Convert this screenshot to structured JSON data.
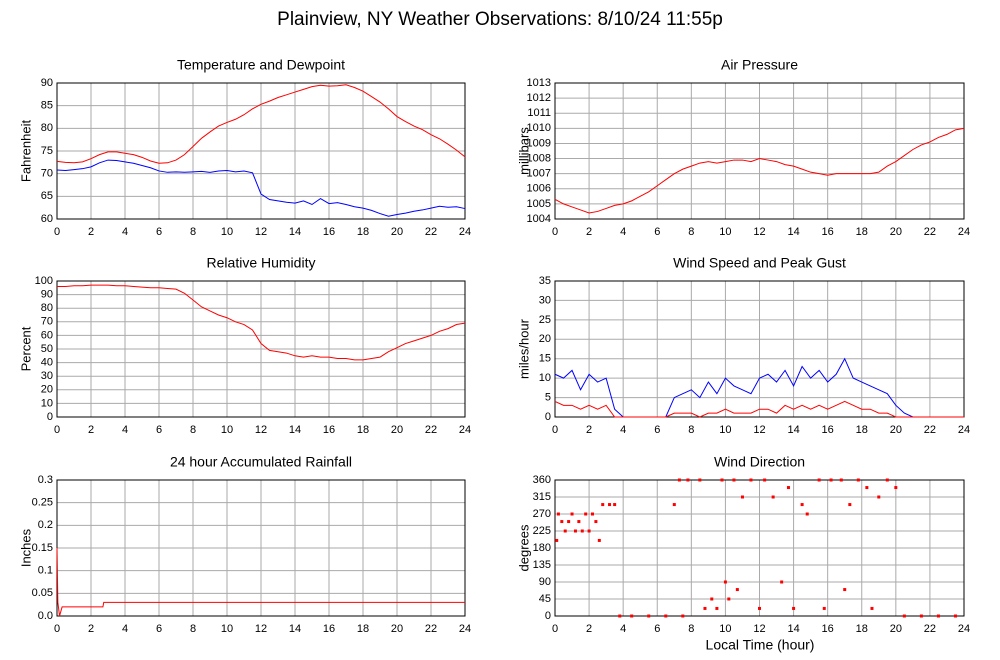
{
  "title": "Plainview, NY Weather Observations: 8/10/24 11:55p",
  "xlabel": "Local Time (hour)",
  "chart_data": [
    {
      "type": "line",
      "title": "Temperature and Dewpoint",
      "ylabel": "Fahrenheit",
      "x": [
        0,
        0.5,
        1,
        1.5,
        2,
        2.5,
        3,
        3.5,
        4,
        4.5,
        5,
        5.5,
        6,
        6.5,
        7,
        7.5,
        8,
        8.5,
        9,
        9.5,
        10,
        10.5,
        11,
        11.5,
        12,
        12.5,
        13,
        13.5,
        14,
        14.5,
        15,
        15.5,
        16,
        16.5,
        17,
        17.5,
        18,
        18.5,
        19,
        19.5,
        20,
        20.5,
        21,
        21.5,
        22,
        22.5,
        23,
        23.5,
        24
      ],
      "series": [
        {
          "color": "#ff0000",
          "values": [
            72.7,
            72.5,
            72.4,
            72.6,
            73.3,
            74.2,
            74.8,
            74.8,
            74.5,
            74.2,
            73.6,
            72.8,
            72.3,
            72.4,
            73,
            74.2,
            76,
            77.8,
            79.2,
            80.5,
            81.3,
            82,
            83,
            84.3,
            85.3,
            86,
            86.8,
            87.4,
            88,
            88.6,
            89.2,
            89.5,
            89.3,
            89.4,
            89.6,
            89,
            88.2,
            87,
            85.8,
            84.3,
            82.6,
            81.5,
            80.5,
            79.7,
            78.6,
            77.7,
            76.5,
            75.2,
            73.7
          ]
        },
        {
          "color": "#0000ff",
          "values": [
            70.8,
            70.7,
            70.9,
            71.1,
            71.5,
            72.4,
            73,
            72.9,
            72.6,
            72.3,
            71.8,
            71.3,
            70.6,
            70.3,
            70.4,
            70.3,
            70.4,
            70.5,
            70.3,
            70.6,
            70.7,
            70.4,
            70.6,
            70.2,
            65.5,
            64.3,
            64,
            63.7,
            63.5,
            64,
            63.2,
            64.5,
            63.4,
            63.6,
            63.2,
            62.7,
            62.4,
            61.9,
            61.2,
            60.6,
            61,
            61.3,
            61.7,
            62,
            62.4,
            62.8,
            62.6,
            62.7,
            62.3
          ]
        }
      ],
      "xlim": [
        0,
        24
      ],
      "xticks": [
        0,
        2,
        4,
        6,
        8,
        10,
        12,
        14,
        16,
        18,
        20,
        22,
        24
      ],
      "ylim": [
        60,
        90
      ],
      "yticks": [
        60,
        65,
        70,
        75,
        80,
        85,
        90
      ],
      "grid": true
    },
    {
      "type": "line",
      "title": "Air Pressure",
      "ylabel": "millibars",
      "x": [
        0,
        0.5,
        1,
        1.5,
        2,
        2.5,
        3,
        3.5,
        4,
        4.5,
        5,
        5.5,
        6,
        6.5,
        7,
        7.5,
        8,
        8.5,
        9,
        9.5,
        10,
        10.5,
        11,
        11.5,
        12,
        12.5,
        13,
        13.5,
        14,
        14.5,
        15,
        15.5,
        16,
        16.5,
        17,
        17.5,
        18,
        18.5,
        19,
        19.5,
        20,
        20.5,
        21,
        21.5,
        22,
        22.5,
        23,
        23.5,
        24
      ],
      "series": [
        {
          "color": "#ff0000",
          "values": [
            1005.3,
            1005,
            1004.8,
            1004.6,
            1004.4,
            1004.5,
            1004.7,
            1004.9,
            1005,
            1005.2,
            1005.5,
            1005.8,
            1006.2,
            1006.6,
            1007,
            1007.3,
            1007.5,
            1007.7,
            1007.8,
            1007.7,
            1007.8,
            1007.9,
            1007.9,
            1007.8,
            1008,
            1007.9,
            1007.8,
            1007.6,
            1007.5,
            1007.3,
            1007.1,
            1007,
            1006.9,
            1007,
            1007,
            1007,
            1007,
            1007,
            1007.1,
            1007.5,
            1007.8,
            1008.2,
            1008.6,
            1008.9,
            1009.1,
            1009.4,
            1009.6,
            1009.9,
            1010
          ]
        }
      ],
      "xlim": [
        0,
        24
      ],
      "xticks": [
        0,
        2,
        4,
        6,
        8,
        10,
        12,
        14,
        16,
        18,
        20,
        22,
        24
      ],
      "ylim": [
        1004,
        1013
      ],
      "yticks": [
        1004,
        1005,
        1006,
        1007,
        1008,
        1009,
        1010,
        1011,
        1012,
        1013
      ],
      "grid": true
    },
    {
      "type": "line",
      "title": "Relative Humidity",
      "ylabel": "Percent",
      "x": [
        0,
        0.5,
        1,
        1.5,
        2,
        2.5,
        3,
        3.5,
        4,
        4.5,
        5,
        5.5,
        6,
        6.5,
        7,
        7.5,
        8,
        8.5,
        9,
        9.5,
        10,
        10.5,
        11,
        11.5,
        12,
        12.5,
        13,
        13.5,
        14,
        14.5,
        15,
        15.5,
        16,
        16.5,
        17,
        17.5,
        18,
        18.5,
        19,
        19.5,
        20,
        20.5,
        21,
        21.5,
        22,
        22.5,
        23,
        23.5,
        24
      ],
      "series": [
        {
          "color": "#ff0000",
          "values": [
            96,
            96,
            96.5,
            96.5,
            97,
            97,
            97,
            96.5,
            96.5,
            96,
            95.5,
            95,
            95,
            94.5,
            94,
            91,
            86,
            81,
            78,
            75,
            73,
            70,
            68,
            64,
            54,
            49,
            48,
            47,
            45,
            44,
            45,
            44,
            44,
            43,
            43,
            42,
            42,
            43,
            44,
            48,
            51,
            54,
            56,
            58,
            60,
            63,
            65,
            68,
            69
          ]
        }
      ],
      "xlim": [
        0,
        24
      ],
      "xticks": [
        0,
        2,
        4,
        6,
        8,
        10,
        12,
        14,
        16,
        18,
        20,
        22,
        24
      ],
      "ylim": [
        0,
        100
      ],
      "yticks": [
        0,
        10,
        20,
        30,
        40,
        50,
        60,
        70,
        80,
        90,
        100
      ],
      "grid": true
    },
    {
      "type": "line",
      "title": "Wind Speed and Peak Gust",
      "ylabel": "miles/hour",
      "x": [
        0,
        0.5,
        1,
        1.5,
        2,
        2.5,
        3,
        3.5,
        4,
        4.5,
        5,
        5.5,
        6,
        6.5,
        7,
        7.5,
        8,
        8.5,
        9,
        9.5,
        10,
        10.5,
        11,
        11.5,
        12,
        12.5,
        13,
        13.5,
        14,
        14.5,
        15,
        15.5,
        16,
        16.5,
        17,
        17.5,
        18,
        18.5,
        19,
        19.5,
        20,
        20.5,
        21,
        21.5,
        22,
        22.5,
        23,
        23.5,
        24
      ],
      "series": [
        {
          "color": "#0000ff",
          "values": [
            11,
            10,
            12,
            7,
            11,
            9,
            10,
            2,
            0,
            0,
            0,
            0,
            0,
            0,
            5,
            6,
            7,
            5,
            9,
            6,
            10,
            8,
            7,
            6,
            10,
            11,
            9,
            12,
            8,
            13,
            10,
            12,
            9,
            11,
            15,
            10,
            9,
            8,
            7,
            6,
            3,
            1,
            0,
            0,
            0,
            0,
            0,
            0,
            0
          ]
        },
        {
          "color": "#ff0000",
          "values": [
            4,
            3,
            3,
            2,
            3,
            2,
            3,
            0,
            0,
            0,
            0,
            0,
            0,
            0,
            1,
            1,
            1,
            0,
            1,
            1,
            2,
            1,
            1,
            1,
            2,
            2,
            1,
            3,
            2,
            3,
            2,
            3,
            2,
            3,
            4,
            3,
            2,
            2,
            1,
            1,
            0,
            0,
            0,
            0,
            0,
            0,
            0,
            0,
            0
          ]
        }
      ],
      "xlim": [
        0,
        24
      ],
      "xticks": [
        0,
        2,
        4,
        6,
        8,
        10,
        12,
        14,
        16,
        18,
        20,
        22,
        24
      ],
      "ylim": [
        0,
        35
      ],
      "yticks": [
        0,
        5,
        10,
        15,
        20,
        25,
        30,
        35
      ],
      "grid": true
    },
    {
      "type": "line",
      "title": "24 hour Accumulated Rainfall",
      "ylabel": "Inches",
      "x": [
        0,
        0.05,
        0.15,
        0.3,
        2.7,
        2.75,
        24
      ],
      "series": [
        {
          "color": "#ff0000",
          "values": [
            0.15,
            0.03,
            0,
            0.02,
            0.02,
            0.03,
            0.03
          ]
        }
      ],
      "xlim": [
        0,
        24
      ],
      "xticks": [
        0,
        2,
        4,
        6,
        8,
        10,
        12,
        14,
        16,
        18,
        20,
        22,
        24
      ],
      "ylim": [
        0,
        0.3
      ],
      "yticks": [
        {
          "value": 0,
          "label": "0.0"
        },
        0.05,
        0.1,
        0.15,
        0.2,
        0.25,
        0.3
      ],
      "grid": true
    },
    {
      "type": "scatter",
      "title": "Wind Direction",
      "ylabel": "degrees",
      "color": "#ff0000",
      "x": [
        0.1,
        0.2,
        0.4,
        0.6,
        0.8,
        1,
        1.2,
        1.4,
        1.6,
        1.8,
        2,
        2.2,
        2.4,
        2.6,
        2.8,
        3.2,
        3.5,
        3.8,
        4.5,
        5.5,
        6.5,
        7,
        7.3,
        7.5,
        7.8,
        8.5,
        8.8,
        9.2,
        9.5,
        9.8,
        10,
        10.2,
        10.5,
        10.7,
        11,
        11.5,
        12,
        12.3,
        12.8,
        13.3,
        13.7,
        14,
        14.5,
        14.8,
        15.5,
        15.8,
        16.2,
        16.8,
        17,
        17.3,
        17.8,
        18.3,
        18.6,
        19,
        19.5,
        20,
        20.5,
        21.5,
        22.5,
        23.5
      ],
      "values": [
        200,
        270,
        250,
        225,
        250,
        270,
        225,
        250,
        225,
        270,
        225,
        270,
        250,
        200,
        295,
        295,
        295,
        0,
        0,
        0,
        0,
        295,
        360,
        0,
        360,
        360,
        20,
        45,
        20,
        360,
        90,
        45,
        360,
        70,
        315,
        360,
        20,
        360,
        315,
        90,
        340,
        20,
        295,
        270,
        360,
        20,
        360,
        360,
        70,
        295,
        360,
        340,
        20,
        315,
        360,
        340,
        0,
        0,
        0,
        0
      ],
      "xlim": [
        0,
        24
      ],
      "xticks": [
        0,
        2,
        4,
        6,
        8,
        10,
        12,
        14,
        16,
        18,
        20,
        22,
        24
      ],
      "ylim": [
        0,
        360
      ],
      "yticks": [
        0,
        45,
        90,
        135,
        180,
        225,
        270,
        315,
        360
      ],
      "grid": true
    }
  ]
}
